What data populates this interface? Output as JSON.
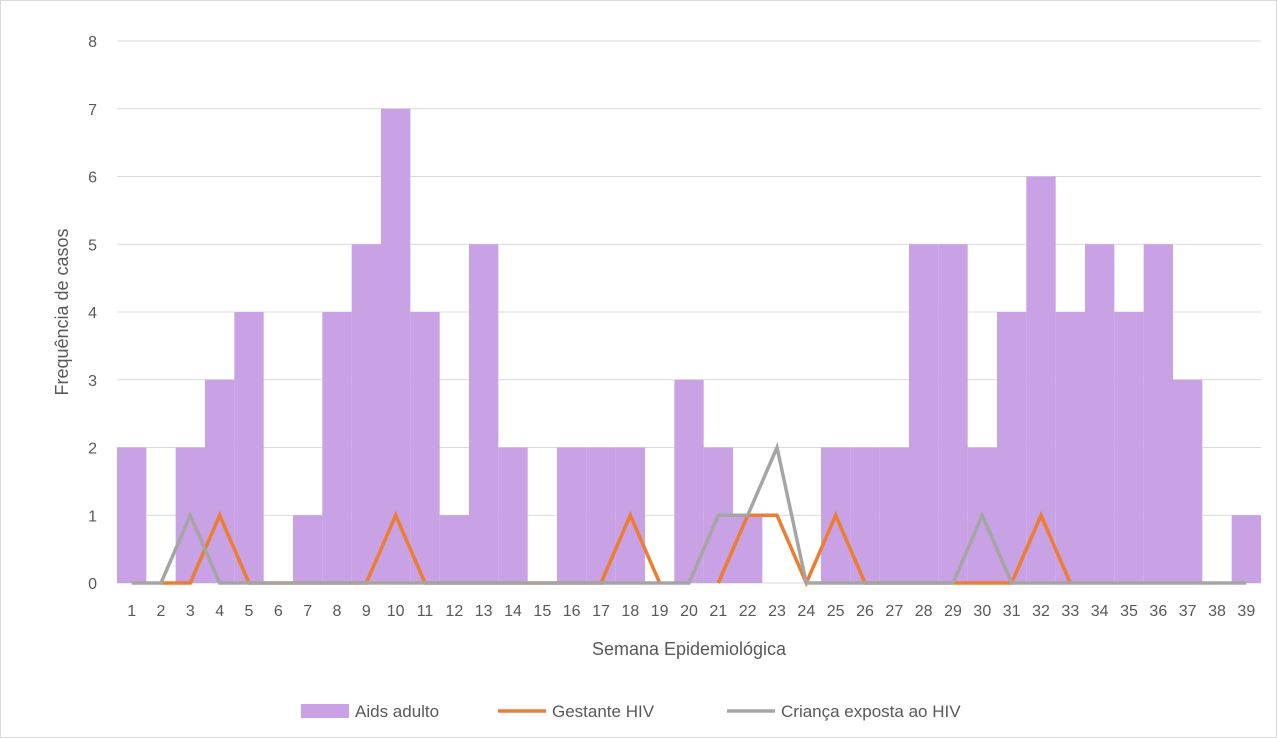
{
  "chart_data": {
    "type": "bar",
    "xlabel": "Semana Epidemiológica",
    "ylabel": "Frequência de casos",
    "ylim": [
      0,
      8
    ],
    "yticks": [
      0,
      1,
      2,
      3,
      4,
      5,
      6,
      7,
      8
    ],
    "grid": true,
    "legend_position": "bottom",
    "categories": [
      "1",
      "2",
      "3",
      "4",
      "5",
      "6",
      "7",
      "8",
      "9",
      "10",
      "11",
      "12",
      "13",
      "14",
      "15",
      "16",
      "17",
      "18",
      "19",
      "20",
      "21",
      "22",
      "23",
      "24",
      "25",
      "26",
      "27",
      "28",
      "29",
      "30",
      "31",
      "32",
      "33",
      "34",
      "35",
      "36",
      "37",
      "38",
      "39"
    ],
    "series": [
      {
        "name": "Aids adulto",
        "kind": "bar",
        "color": "#c8a2e4",
        "values": [
          2,
          0,
          2,
          3,
          4,
          0,
          1,
          4,
          5,
          7,
          4,
          1,
          5,
          2,
          0,
          2,
          2,
          2,
          0,
          3,
          2,
          1,
          0,
          0,
          2,
          2,
          2,
          5,
          5,
          2,
          4,
          6,
          4,
          5,
          4,
          5,
          3,
          0,
          1
        ]
      },
      {
        "name": "Gestante HIV",
        "kind": "line",
        "color": "#ed7d31",
        "values": [
          null,
          0,
          0,
          1,
          0,
          0,
          0,
          0,
          0,
          1,
          0,
          0,
          0,
          0,
          0,
          0,
          0,
          1,
          0,
          null,
          0,
          1,
          1,
          0,
          1,
          0,
          0,
          0,
          0,
          0,
          0,
          1,
          0,
          null,
          null,
          null,
          null,
          null,
          null
        ]
      },
      {
        "name": "Criança exposta ao HIV",
        "kind": "line",
        "color": "#a5a5a5",
        "values": [
          0,
          0,
          1,
          0,
          0,
          0,
          0,
          0,
          0,
          0,
          0,
          0,
          0,
          0,
          0,
          0,
          0,
          0,
          0,
          0,
          1,
          1,
          2,
          0,
          0,
          0,
          0,
          0,
          0,
          1,
          0,
          0,
          0,
          0,
          0,
          0,
          0,
          0,
          0
        ]
      }
    ]
  }
}
